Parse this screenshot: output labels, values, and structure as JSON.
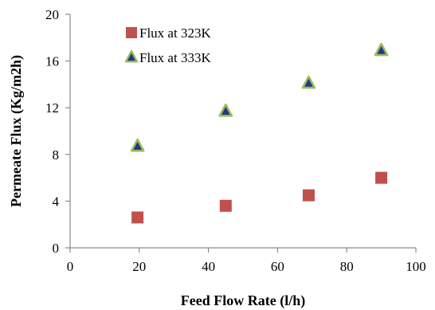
{
  "chart_data": {
    "type": "scatter",
    "xlabel": "Feed Flow Rate (l/h)",
    "ylabel": "Permeate Flux (Kg/m2h)",
    "xlim": [
      0,
      100
    ],
    "ylim": [
      0,
      20
    ],
    "x_ticks": [
      "0",
      "20",
      "40",
      "60",
      "80",
      "100"
    ],
    "y_ticks": [
      "0",
      "4",
      "8",
      "12",
      "16",
      "20"
    ],
    "grid": false,
    "legend_position": "top-left",
    "series": [
      {
        "name": "Flux at 323K",
        "marker": "square",
        "color": "#c0504d",
        "points": [
          {
            "x": 19.5,
            "y": 2.6
          },
          {
            "x": 45,
            "y": 3.6
          },
          {
            "x": 69,
            "y": 4.5
          },
          {
            "x": 90,
            "y": 6.0
          }
        ]
      },
      {
        "name": "Flux at 333K",
        "marker": "triangle",
        "color": "#1f3a8a",
        "edge_color": "#9bbb59",
        "points": [
          {
            "x": 19.5,
            "y": 8.7
          },
          {
            "x": 45,
            "y": 11.7
          },
          {
            "x": 69,
            "y": 14.1
          },
          {
            "x": 90,
            "y": 16.9
          }
        ]
      }
    ]
  }
}
